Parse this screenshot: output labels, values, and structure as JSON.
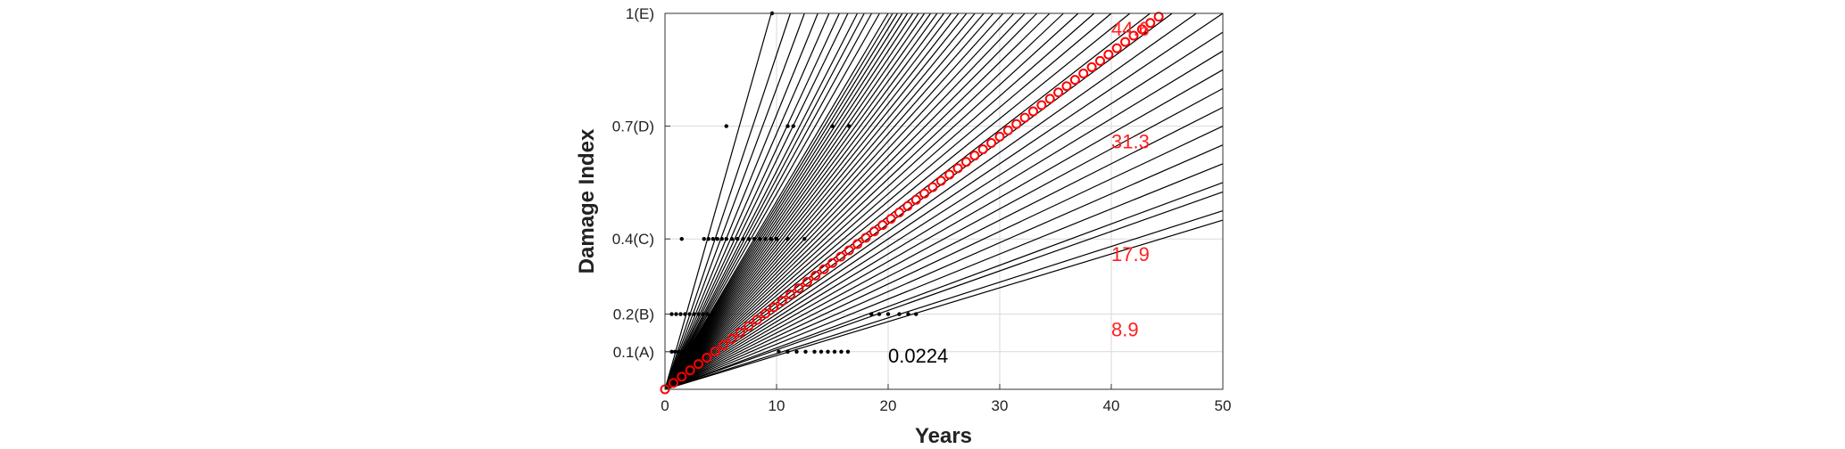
{
  "chart_data": {
    "type": "line",
    "title": "",
    "xlabel": "Years",
    "ylabel": "Damage Index",
    "xlim": [
      0,
      50
    ],
    "ylim": [
      0,
      1
    ],
    "grid": true,
    "x_ticks": [
      0,
      10,
      20,
      30,
      40,
      50
    ],
    "y_ticks": [
      {
        "value": 0.1,
        "label": "0.1(A)"
      },
      {
        "value": 0.2,
        "label": "0.2(B)"
      },
      {
        "value": 0.4,
        "label": "0.4(C)"
      },
      {
        "value": 0.7,
        "label": "0.7(D)"
      },
      {
        "value": 1.0,
        "label": "1(E)"
      }
    ],
    "colors": {
      "lines": "#000000",
      "mean": "#ff0000",
      "grid": "#d9d9d9",
      "annot_red": "#ff2020",
      "annot_black": "#000000"
    },
    "line_fan": {
      "description_values": "sampled degradation paths as rate per year (damage index / year), all starting at origin",
      "rates": [
        0.105,
        0.089,
        0.08,
        0.073,
        0.068,
        0.064,
        0.061,
        0.058,
        0.056,
        0.054,
        0.052,
        0.05,
        0.049,
        0.048,
        0.047,
        0.046,
        0.045,
        0.044,
        0.043,
        0.042,
        0.041,
        0.04,
        0.039,
        0.038,
        0.037,
        0.036,
        0.035,
        0.034,
        0.033,
        0.032,
        0.031,
        0.03,
        0.029,
        0.028,
        0.027,
        0.026,
        0.025,
        0.024,
        0.023,
        0.022,
        0.021,
        0.02,
        0.019,
        0.018,
        0.017,
        0.016,
        0.015,
        0.014,
        0.013,
        0.012,
        0.011,
        0.0105,
        0.0095,
        0.009
      ]
    },
    "mean_series": {
      "name": "",
      "slope": 0.0224,
      "x": [
        0,
        0.75,
        1.5,
        2.25,
        3.0,
        3.75,
        4.5,
        5.25,
        6.0,
        6.75,
        7.5,
        8.25,
        9.0,
        9.75,
        10.5,
        11.25,
        12.0,
        12.75,
        13.5,
        14.25,
        15.0,
        15.75,
        16.5,
        17.25,
        18.0,
        18.75,
        19.5,
        20.25,
        21.0,
        21.75,
        22.5,
        23.25,
        24.0,
        24.75,
        25.5,
        26.25,
        27.0,
        27.75,
        28.5,
        29.25,
        30.0,
        30.75,
        31.5,
        32.25,
        33.0,
        33.75,
        34.5,
        35.25,
        36.0,
        36.75,
        37.5,
        38.25,
        39.0,
        39.75,
        40.5,
        41.25,
        42.0,
        42.75,
        43.5,
        44.25
      ]
    },
    "threshold_points": [
      {
        "y": 0.1,
        "x": [
          0.6,
          0.9,
          1.2,
          1.5,
          1.8,
          2.1,
          2.4,
          10.2,
          11.0,
          11.8,
          12.6,
          13.4,
          14.0,
          14.6,
          15.2,
          15.8,
          16.4
        ]
      },
      {
        "y": 0.2,
        "x": [
          0.6,
          1.0,
          1.4,
          1.8,
          2.2,
          2.6,
          3.0,
          3.4,
          3.8,
          4.2,
          18.5,
          19.2,
          20.0,
          21.0,
          21.8,
          22.5
        ]
      },
      {
        "y": 0.4,
        "x": [
          1.5,
          3.5,
          3.9,
          4.3,
          4.7,
          5.1,
          5.5,
          6.0,
          6.5,
          7.0,
          7.5,
          8.0,
          8.5,
          9.0,
          9.5,
          10.0,
          11.0,
          12.5
        ]
      },
      {
        "y": 0.7,
        "x": [
          5.5,
          11.0,
          11.5,
          15.0,
          16.5
        ]
      },
      {
        "y": 1.0,
        "x": [
          9.6
        ]
      }
    ],
    "annotations": [
      {
        "text": "44.6",
        "x": 40.0,
        "y": 0.96,
        "color": "#ff2020"
      },
      {
        "text": "31.3",
        "x": 40.0,
        "y": 0.66,
        "color": "#ff2020"
      },
      {
        "text": "17.9",
        "x": 40.0,
        "y": 0.36,
        "color": "#ff2020"
      },
      {
        "text": "8.9",
        "x": 40.0,
        "y": 0.16,
        "color": "#ff2020"
      },
      {
        "text": "0.0224",
        "x": 20.0,
        "y": 0.09,
        "color": "#000000"
      }
    ]
  }
}
